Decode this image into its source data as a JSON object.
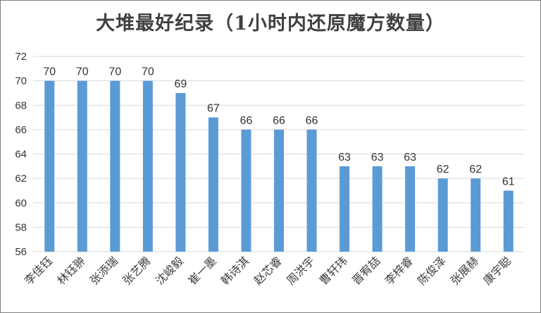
{
  "chart_data": {
    "type": "bar",
    "title": "大堆最好纪录（1小时内还原魔方数量）",
    "categories": [
      "李佳钰",
      "林钰翀",
      "张添瑞",
      "张艺腾",
      "沈峻毅",
      "崔一墨",
      "韩诗淇",
      "赵芯睿",
      "周洪宇",
      "曹轩玮",
      "晋宥喆",
      "李梓睿",
      "陈俊泽",
      "张展赫",
      "康宇聪"
    ],
    "values": [
      70,
      70,
      70,
      70,
      69,
      67,
      66,
      66,
      66,
      63,
      63,
      63,
      62,
      62,
      61
    ],
    "ylim": [
      56,
      72
    ],
    "yticks": [
      56,
      58,
      60,
      62,
      64,
      66,
      68,
      70,
      72
    ],
    "grid": true,
    "legend": "none",
    "bar_color": "#5b9bd5",
    "grid_color": "#d9d9d9"
  }
}
